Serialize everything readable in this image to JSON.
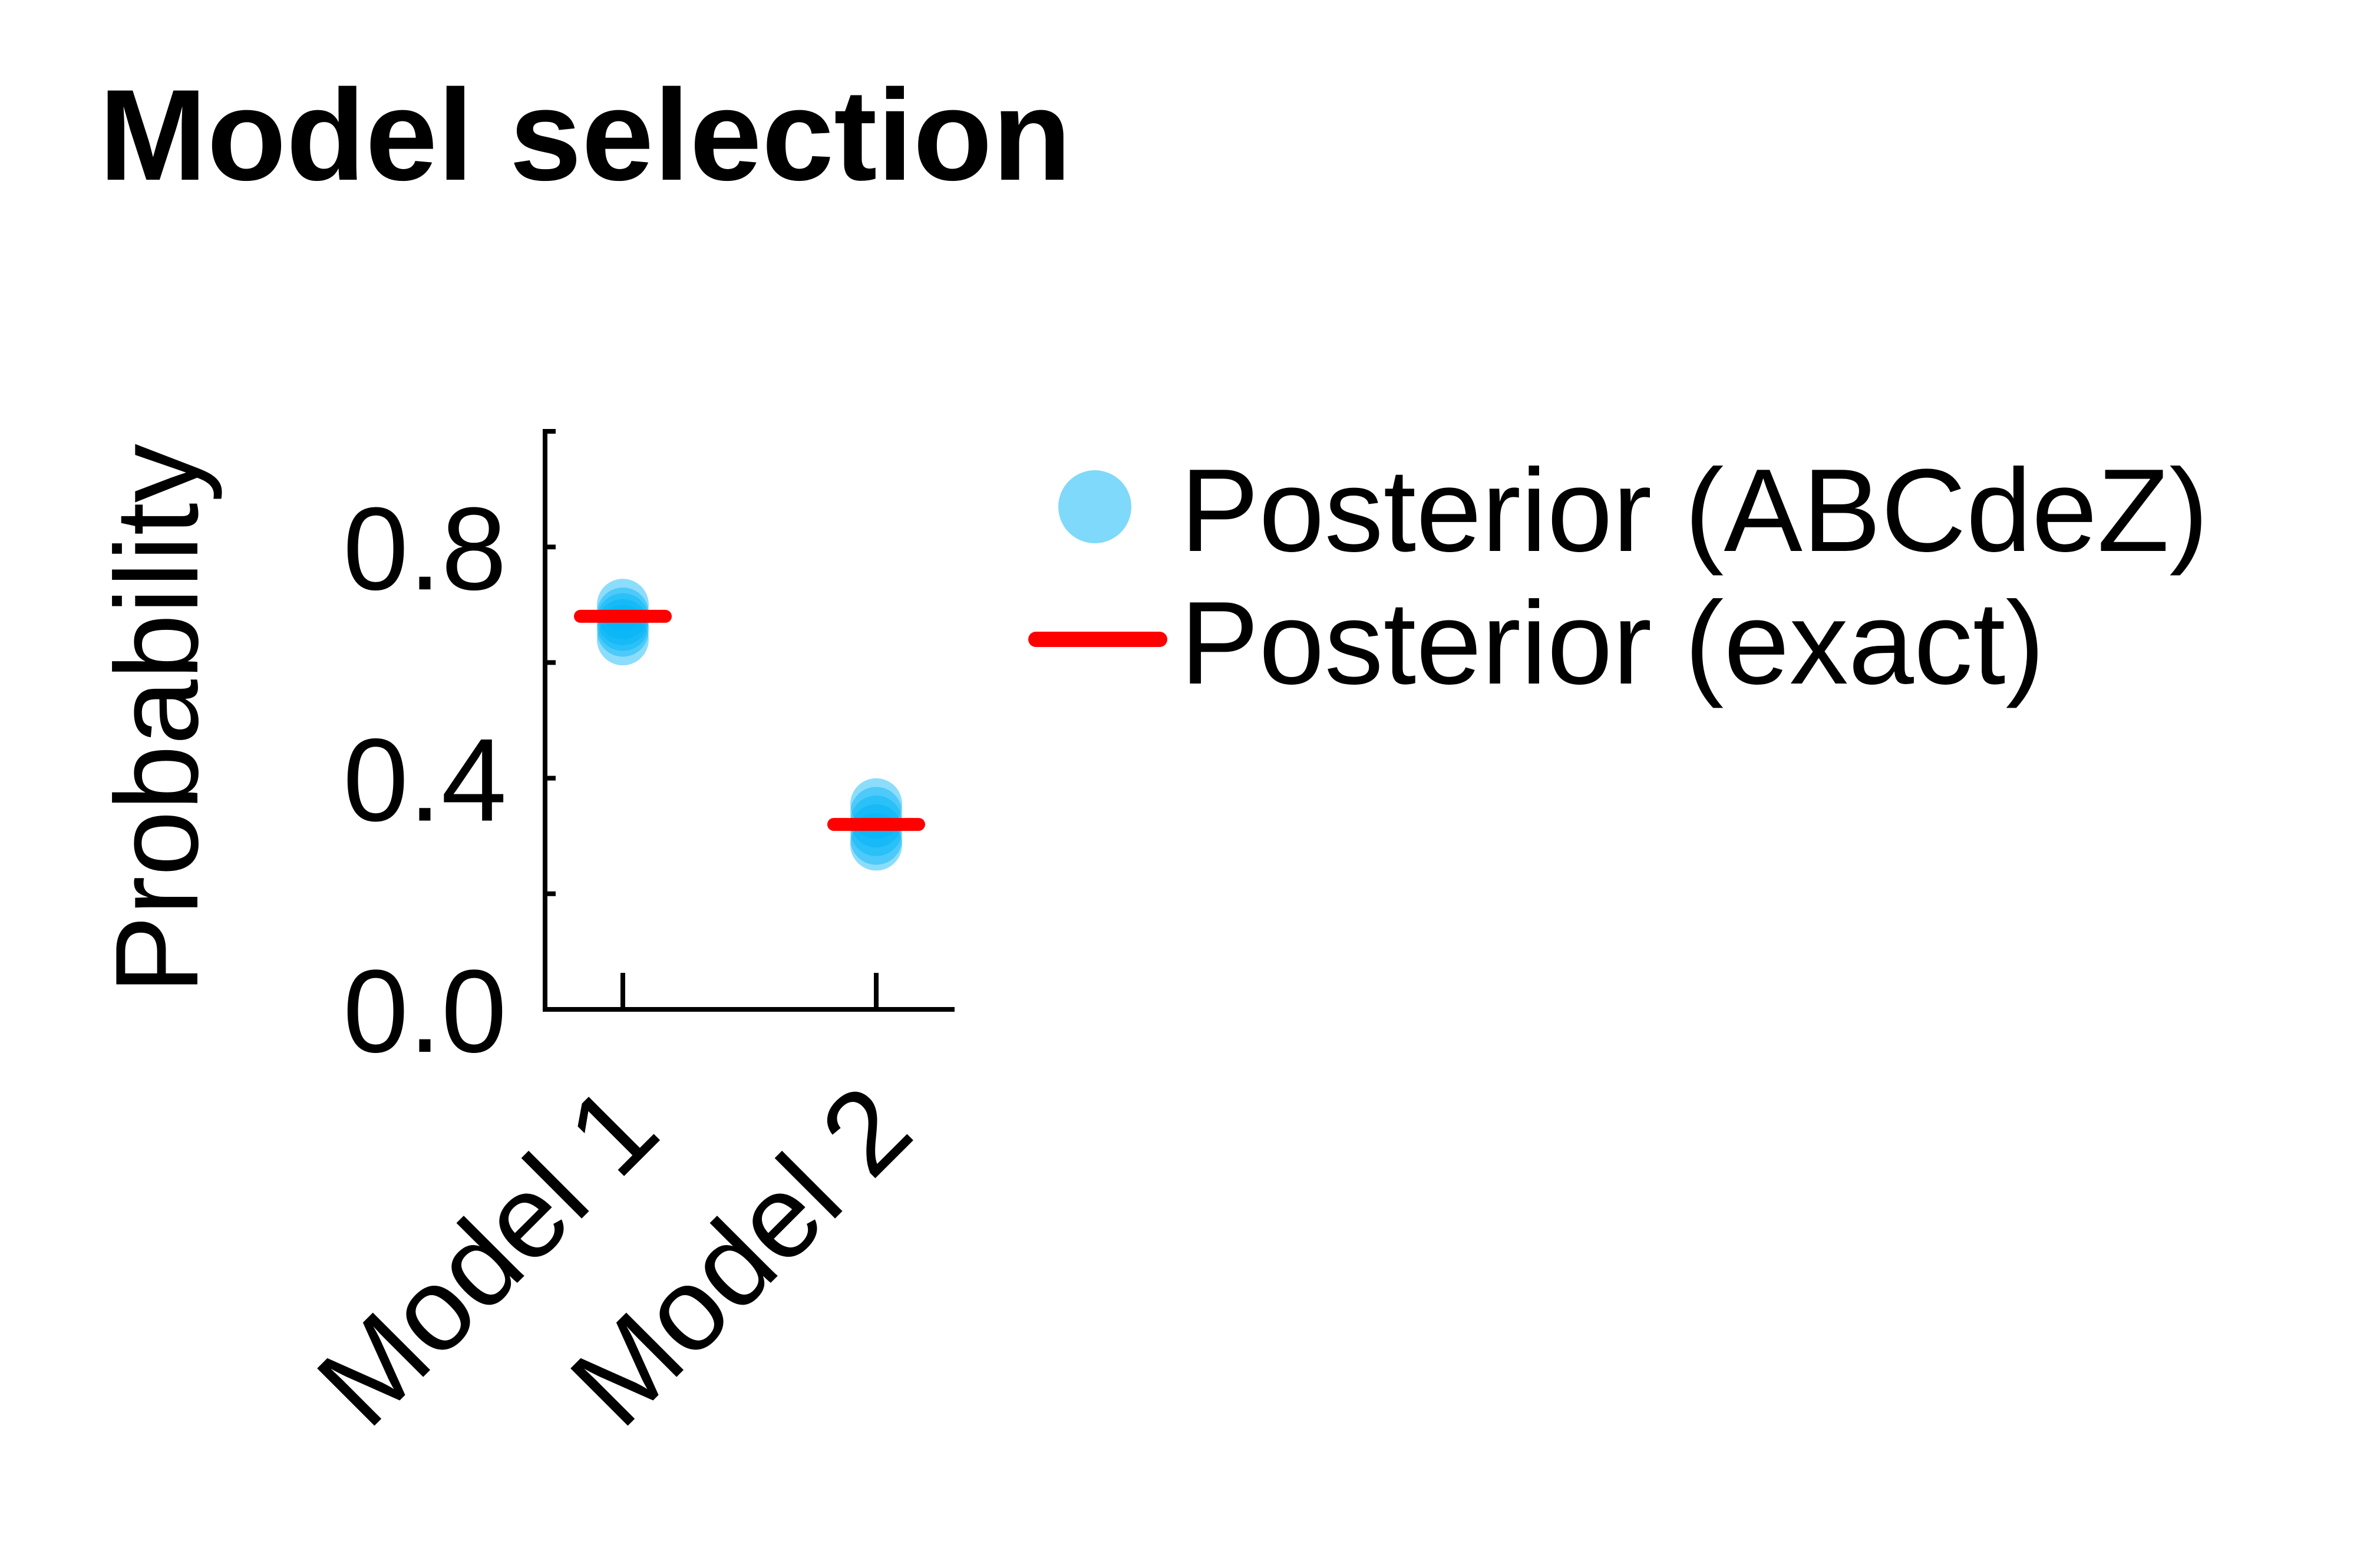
{
  "chart_data": {
    "type": "scatter",
    "title": "Model selection",
    "xlabel": "",
    "ylabel": "Probability",
    "categories": [
      "Model 1",
      "Model 2"
    ],
    "ylim": [
      0.0,
      1.0
    ],
    "yticks": [
      0.0,
      0.2,
      0.4,
      0.6,
      0.8,
      1.0
    ],
    "ytick_labels": [
      "0.0",
      "",
      "0.4",
      "",
      "0.8",
      ""
    ],
    "grid": false,
    "legend_position": "right",
    "series": [
      {
        "name": "Posterior (ABCdeZ)",
        "kind": "points",
        "color": "#00b4f6",
        "values": [
          [
            0.7,
            0.685,
            0.675,
            0.665,
            0.655,
            0.64
          ],
          [
            0.355,
            0.34,
            0.325,
            0.31,
            0.295,
            0.285
          ]
        ]
      },
      {
        "name": "Posterior (exact)",
        "kind": "hline",
        "color": "#ff0000",
        "values": [
          0.68,
          0.32
        ]
      }
    ]
  }
}
